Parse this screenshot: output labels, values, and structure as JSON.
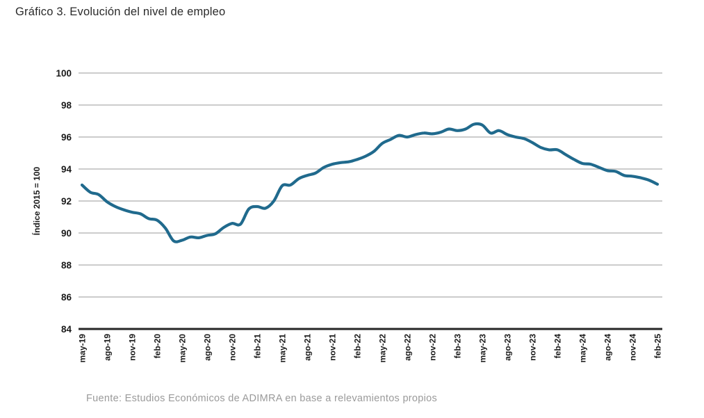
{
  "chart_data": {
    "type": "line",
    "title": "Gráfico 3. Evolución del nivel de empleo",
    "ylabel": "Índice 2015 = 100",
    "source": "Fuente: Estudios Económicos de ADIMRA en base a relevamientos propios",
    "ylim": [
      84,
      100
    ],
    "y_ticks": [
      84,
      86,
      88,
      90,
      92,
      94,
      96,
      98,
      100
    ],
    "grid": true,
    "legend": "none",
    "x_tick_every": 3,
    "x_tick_labels": [
      "may-19",
      "ago-19",
      "nov-19",
      "feb-20",
      "may-20",
      "ago-20",
      "nov-20",
      "feb-21",
      "may-21",
      "ago-21",
      "nov-21",
      "feb-22",
      "may-22",
      "ago-22",
      "nov-22",
      "feb-23",
      "may-23",
      "ago-23",
      "nov-23",
      "feb-24",
      "may-24",
      "ago-24",
      "nov-24",
      "feb-25"
    ],
    "series": [
      {
        "name": "Nivel de empleo (índice 2015 = 100)",
        "x_start": "may-19",
        "x_step": "1 month",
        "values": [
          93.0,
          92.55,
          92.4,
          91.95,
          91.65,
          91.45,
          91.3,
          91.2,
          90.9,
          90.8,
          90.3,
          89.5,
          89.55,
          89.75,
          89.7,
          89.85,
          89.95,
          90.35,
          90.6,
          90.55,
          91.5,
          91.65,
          91.55,
          92.0,
          92.95,
          93.0,
          93.4,
          93.6,
          93.75,
          94.1,
          94.3,
          94.4,
          94.45,
          94.6,
          94.8,
          95.1,
          95.6,
          95.85,
          96.1,
          96.0,
          96.15,
          96.25,
          96.2,
          96.3,
          96.5,
          96.4,
          96.5,
          96.8,
          96.75,
          96.25,
          96.4,
          96.15,
          96.0,
          95.9,
          95.65,
          95.35,
          95.2,
          95.2,
          94.9,
          94.6,
          94.35,
          94.3,
          94.1,
          93.9,
          93.85,
          93.6,
          93.55,
          93.45,
          93.3,
          93.05
        ]
      }
    ],
    "colors": {
      "line": "#206a8d",
      "grid": "#bcbcbc",
      "axis": "#262626",
      "tick_text": "#1a1a1a",
      "title_text": "#2a2a2a",
      "source_text": "#9a9a9a"
    }
  }
}
